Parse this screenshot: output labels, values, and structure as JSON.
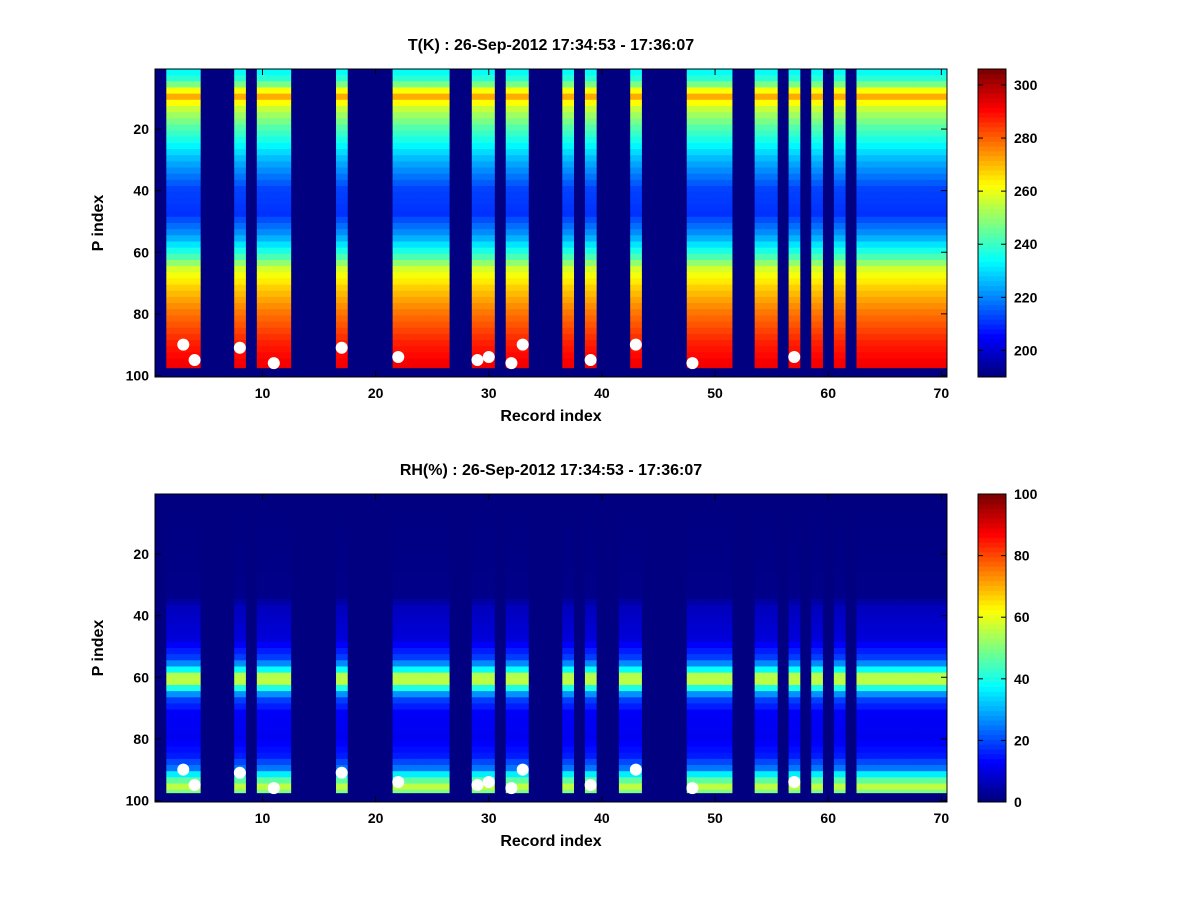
{
  "chart_data": [
    {
      "type": "heatmap",
      "title": "T(K) : 26-Sep-2012 17:34:53 - 17:36:07",
      "xlabel": "Record index",
      "ylabel": "P index",
      "xlim": [
        0.5,
        70.5
      ],
      "ylim": [
        0.5,
        100.5
      ],
      "y_reversed": true,
      "x_ticks": [
        10,
        20,
        30,
        40,
        50,
        60,
        70
      ],
      "y_ticks": [
        20,
        40,
        60,
        80,
        100
      ],
      "colormap": "jet",
      "clim": [
        190,
        306
      ],
      "colorbar_ticks": [
        200,
        220,
        240,
        260,
        280,
        300
      ],
      "empty_value": 190,
      "data_columns": [
        2,
        3,
        4,
        8,
        10,
        11,
        12,
        17,
        22,
        23,
        24,
        25,
        26,
        29,
        30,
        32,
        33,
        37,
        39,
        43,
        48,
        49,
        50,
        51,
        54,
        55,
        57,
        59,
        61,
        63,
        64,
        65,
        66,
        67,
        68,
        69,
        70
      ],
      "profile": [
        [
          1,
          232
        ],
        [
          5,
          240
        ],
        [
          8,
          262
        ],
        [
          10,
          272
        ],
        [
          13,
          258
        ],
        [
          20,
          243
        ],
        [
          30,
          226
        ],
        [
          40,
          212
        ],
        [
          48,
          210
        ],
        [
          55,
          222
        ],
        [
          62,
          242
        ],
        [
          66,
          258
        ],
        [
          72,
          268
        ],
        [
          80,
          278
        ],
        [
          90,
          288
        ],
        [
          97,
          293
        ]
      ],
      "markers": [
        [
          3,
          90
        ],
        [
          4,
          95
        ],
        [
          8,
          91
        ],
        [
          11,
          96
        ],
        [
          17,
          91
        ],
        [
          22,
          94
        ],
        [
          29,
          95
        ],
        [
          30,
          94
        ],
        [
          32,
          96
        ],
        [
          33,
          90
        ],
        [
          39,
          95
        ],
        [
          43,
          90
        ],
        [
          48,
          96
        ],
        [
          57,
          94
        ]
      ]
    },
    {
      "type": "heatmap",
      "title": "RH(%) : 26-Sep-2012 17:34:53 - 17:36:07",
      "xlabel": "Record index",
      "ylabel": "P index",
      "xlim": [
        0.5,
        70.5
      ],
      "ylim": [
        0.5,
        100.5
      ],
      "y_reversed": true,
      "x_ticks": [
        10,
        20,
        30,
        40,
        50,
        60,
        70
      ],
      "y_ticks": [
        20,
        40,
        60,
        80,
        100
      ],
      "colormap": "jet",
      "clim": [
        0,
        100
      ],
      "colorbar_ticks": [
        0,
        20,
        40,
        60,
        80,
        100
      ],
      "empty_value": 0,
      "data_columns": [
        2,
        3,
        4,
        8,
        10,
        11,
        12,
        17,
        22,
        23,
        24,
        25,
        26,
        29,
        30,
        32,
        33,
        37,
        39,
        42,
        43,
        48,
        49,
        50,
        51,
        54,
        55,
        57,
        59,
        61,
        63,
        64,
        65,
        66,
        67,
        68,
        69,
        70
      ],
      "profile": [
        [
          1,
          0
        ],
        [
          34,
          1
        ],
        [
          38,
          6
        ],
        [
          48,
          9
        ],
        [
          55,
          20
        ],
        [
          58,
          38
        ],
        [
          60,
          55
        ],
        [
          62,
          56
        ],
        [
          64,
          40
        ],
        [
          67,
          20
        ],
        [
          72,
          12
        ],
        [
          80,
          11
        ],
        [
          86,
          15
        ],
        [
          90,
          24
        ],
        [
          93,
          42
        ],
        [
          96,
          56
        ],
        [
          97,
          50
        ]
      ],
      "markers": [
        [
          3,
          90
        ],
        [
          4,
          95
        ],
        [
          8,
          91
        ],
        [
          11,
          96
        ],
        [
          17,
          91
        ],
        [
          22,
          94
        ],
        [
          29,
          95
        ],
        [
          30,
          94
        ],
        [
          32,
          96
        ],
        [
          33,
          90
        ],
        [
          39,
          95
        ],
        [
          43,
          90
        ],
        [
          48,
          96
        ],
        [
          57,
          94
        ]
      ]
    }
  ]
}
